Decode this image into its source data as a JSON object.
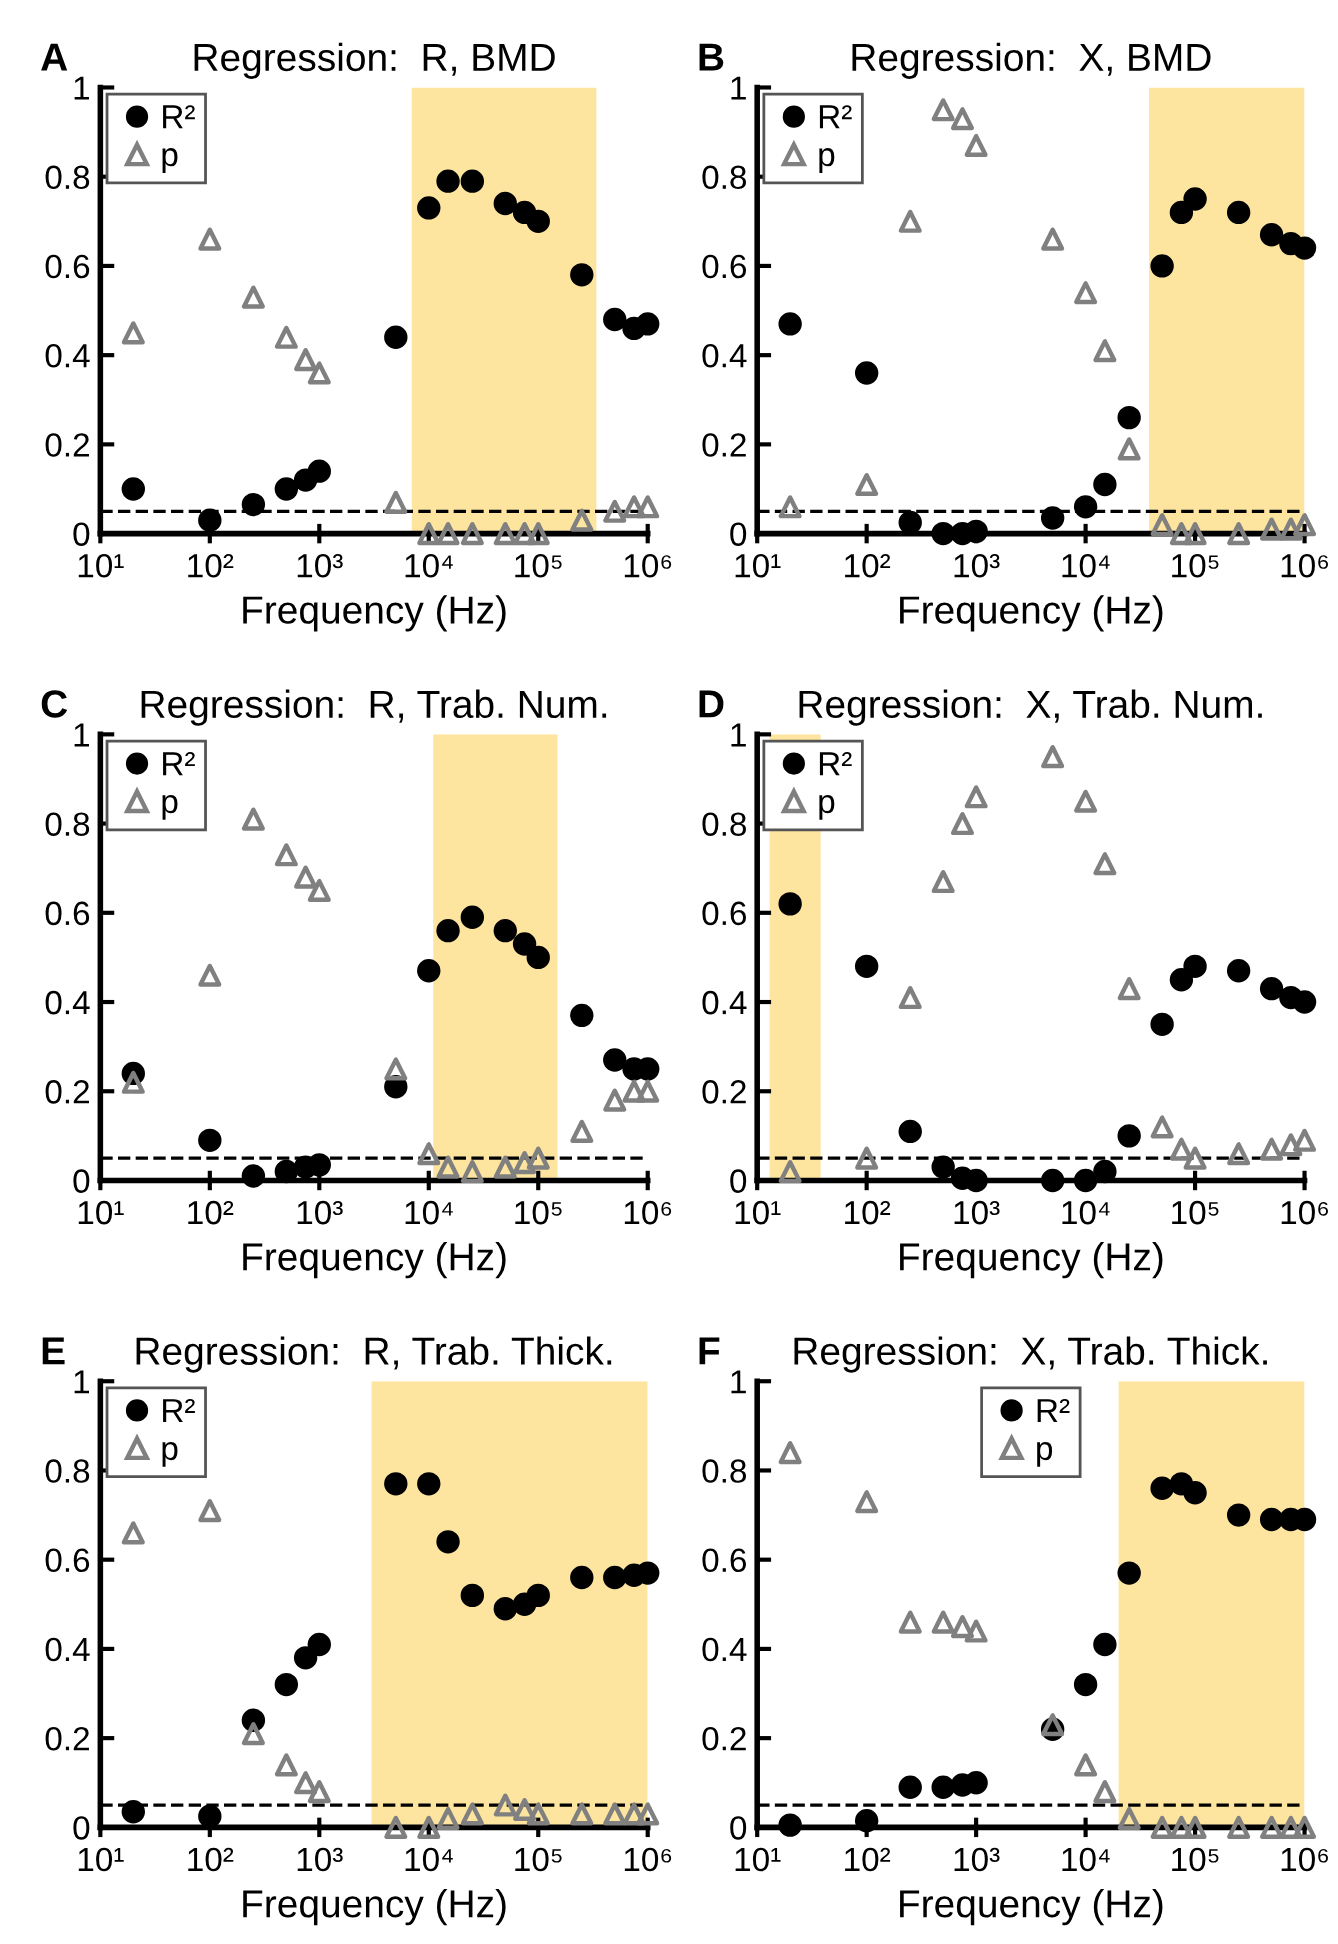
{
  "chart_data": [
    {
      "type": "scatter",
      "title": "Regression:  R, BMD",
      "annotations": [
        "A"
      ],
      "xlabel": "Frequency (Hz)",
      "log": "x",
      "legend": "top left",
      "grid": false,
      "x": [
        20,
        100,
        250,
        500,
        750,
        1000,
        5000,
        10000,
        15000,
        25000,
        50000,
        75000,
        100000,
        250000,
        500000,
        750000,
        1000000
      ],
      "series": [
        {
          "name": "R²",
          "color": "#000000",
          "marker": "circle",
          "values": [
            0.1,
            0.03,
            0.065,
            0.1,
            0.12,
            0.14,
            0.44,
            0.73,
            0.79,
            0.79,
            0.74,
            0.72,
            0.7,
            0.58,
            0.48,
            0.46,
            0.47
          ]
        },
        {
          "name": "p",
          "color": "#808080",
          "marker": "triangle",
          "values": [
            0.45,
            0.66,
            0.53,
            0.44,
            0.39,
            0.36,
            0.07,
            0.0,
            0.0,
            0.0,
            0.0,
            0.0,
            0.0,
            0.03,
            0.05,
            0.06,
            0.06
          ]
        }
      ],
      "bands": [
        {
          "axis": "x",
          "from": 7000,
          "to": 340000,
          "color": "#fde5a0"
        }
      ],
      "ref_lines": [
        {
          "axis": "y",
          "value": 0.05,
          "line_style": "dashed",
          "color": "#000000"
        }
      ],
      "xlim": [
        10,
        1000000
      ],
      "xticks": [
        {
          "value": 10,
          "label": "10¹"
        },
        {
          "value": 100,
          "label": "10²"
        },
        {
          "value": 1000,
          "label": "10³"
        },
        {
          "value": 10000,
          "label": "10⁴"
        },
        {
          "value": 100000,
          "label": "10⁵"
        },
        {
          "value": 1000000,
          "label": "10⁶"
        }
      ],
      "ylim": [
        0,
        1
      ],
      "yticks": [
        0,
        0.2,
        0.4,
        0.6,
        0.8,
        1
      ]
    },
    {
      "type": "scatter",
      "title": "Regression:  X, BMD",
      "annotations": [
        "B"
      ],
      "xlabel": "Frequency (Hz)",
      "log": "x",
      "legend": "top left",
      "grid": false,
      "x": [
        20,
        100,
        250,
        500,
        750,
        1000,
        5000,
        10000,
        15000,
        25000,
        50000,
        75000,
        100000,
        250000,
        500000,
        750000,
        1000000
      ],
      "series": [
        {
          "name": "R²",
          "color": "#000000",
          "marker": "circle",
          "values": [
            0.47,
            0.36,
            0.025,
            0.0,
            0.0,
            0.005,
            0.035,
            0.06,
            0.11,
            0.26,
            0.6,
            0.72,
            0.75,
            0.72,
            0.67,
            0.65,
            0.64
          ]
        },
        {
          "name": "p",
          "color": "#808080",
          "marker": "triangle",
          "values": [
            0.06,
            0.11,
            0.7,
            0.95,
            0.93,
            0.87,
            0.66,
            0.54,
            0.41,
            0.19,
            0.02,
            0.0,
            0.0,
            0.0,
            0.01,
            0.01,
            0.02
          ]
        }
      ],
      "bands": [
        {
          "axis": "x",
          "from": 38000,
          "to": 1000000,
          "color": "#fde5a0"
        }
      ],
      "ref_lines": [
        {
          "axis": "y",
          "value": 0.05,
          "line_style": "dashed",
          "color": "#000000"
        }
      ],
      "xlim": [
        10,
        1000000
      ],
      "xticks": [
        {
          "value": 10,
          "label": "10¹"
        },
        {
          "value": 100,
          "label": "10²"
        },
        {
          "value": 1000,
          "label": "10³"
        },
        {
          "value": 10000,
          "label": "10⁴"
        },
        {
          "value": 100000,
          "label": "10⁵"
        },
        {
          "value": 1000000,
          "label": "10⁶"
        }
      ],
      "ylim": [
        0,
        1
      ],
      "yticks": [
        0,
        0.2,
        0.4,
        0.6,
        0.8,
        1
      ]
    },
    {
      "type": "scatter",
      "title": "Regression:  R, Trab. Num.",
      "annotations": [
        "C"
      ],
      "xlabel": "Frequency (Hz)",
      "log": "x",
      "legend": "top left",
      "grid": false,
      "x": [
        20,
        100,
        250,
        500,
        750,
        1000,
        5000,
        10000,
        15000,
        25000,
        50000,
        75000,
        100000,
        250000,
        500000,
        750000,
        1000000
      ],
      "series": [
        {
          "name": "R²",
          "color": "#000000",
          "marker": "circle",
          "values": [
            0.24,
            0.09,
            0.01,
            0.02,
            0.03,
            0.035,
            0.21,
            0.47,
            0.56,
            0.59,
            0.56,
            0.53,
            0.5,
            0.37,
            0.27,
            0.25,
            0.25
          ]
        },
        {
          "name": "p",
          "color": "#808080",
          "marker": "triangle",
          "values": [
            0.22,
            0.46,
            0.81,
            0.73,
            0.68,
            0.65,
            0.25,
            0.06,
            0.03,
            0.02,
            0.03,
            0.04,
            0.05,
            0.11,
            0.18,
            0.2,
            0.2
          ]
        }
      ],
      "bands": [
        {
          "axis": "x",
          "from": 11000,
          "to": 150000,
          "color": "#fde5a0"
        }
      ],
      "ref_lines": [
        {
          "axis": "y",
          "value": 0.05,
          "line_style": "dashed",
          "color": "#000000"
        }
      ],
      "xlim": [
        10,
        1000000
      ],
      "xticks": [
        {
          "value": 10,
          "label": "10¹"
        },
        {
          "value": 100,
          "label": "10²"
        },
        {
          "value": 1000,
          "label": "10³"
        },
        {
          "value": 10000,
          "label": "10⁴"
        },
        {
          "value": 100000,
          "label": "10⁵"
        },
        {
          "value": 1000000,
          "label": "10⁶"
        }
      ],
      "ylim": [
        0,
        1
      ],
      "yticks": [
        0,
        0.2,
        0.4,
        0.6,
        0.8,
        1
      ]
    },
    {
      "type": "scatter",
      "title": "Regression:  X, Trab. Num.",
      "annotations": [
        "D"
      ],
      "xlabel": "Frequency (Hz)",
      "log": "x",
      "legend": "top left",
      "grid": false,
      "x": [
        20,
        100,
        250,
        500,
        750,
        1000,
        5000,
        10000,
        15000,
        25000,
        50000,
        75000,
        100000,
        250000,
        500000,
        750000,
        1000000
      ],
      "series": [
        {
          "name": "R²",
          "color": "#000000",
          "marker": "circle",
          "values": [
            0.62,
            0.48,
            0.11,
            0.03,
            0.005,
            0.0,
            0.0,
            0.0,
            0.02,
            0.1,
            0.35,
            0.45,
            0.48,
            0.47,
            0.43,
            0.41,
            0.4
          ]
        },
        {
          "name": "p",
          "color": "#808080",
          "marker": "triangle",
          "values": [
            0.02,
            0.05,
            0.41,
            0.67,
            0.8,
            0.86,
            0.95,
            0.85,
            0.71,
            0.43,
            0.12,
            0.07,
            0.05,
            0.06,
            0.07,
            0.08,
            0.09
          ]
        }
      ],
      "bands": [
        {
          "axis": "x",
          "from": 13,
          "to": 38,
          "color": "#fde5a0"
        }
      ],
      "ref_lines": [
        {
          "axis": "y",
          "value": 0.05,
          "line_style": "dashed",
          "color": "#000000"
        }
      ],
      "xlim": [
        10,
        1000000
      ],
      "xticks": [
        {
          "value": 10,
          "label": "10¹"
        },
        {
          "value": 100,
          "label": "10²"
        },
        {
          "value": 1000,
          "label": "10³"
        },
        {
          "value": 10000,
          "label": "10⁴"
        },
        {
          "value": 100000,
          "label": "10⁵"
        },
        {
          "value": 1000000,
          "label": "10⁶"
        }
      ],
      "ylim": [
        0,
        1
      ],
      "yticks": [
        0,
        0.2,
        0.4,
        0.6,
        0.8,
        1
      ]
    },
    {
      "type": "scatter",
      "title": "Regression:  R, Trab. Thick.",
      "annotations": [
        "E"
      ],
      "xlabel": "Frequency (Hz)",
      "log": "x",
      "legend": "top left",
      "grid": false,
      "x": [
        20,
        100,
        250,
        500,
        750,
        1000,
        5000,
        10000,
        15000,
        25000,
        50000,
        75000,
        100000,
        250000,
        500000,
        750000,
        1000000
      ],
      "series": [
        {
          "name": "R²",
          "color": "#000000",
          "marker": "circle",
          "values": [
            0.035,
            0.025,
            0.24,
            0.32,
            0.38,
            0.41,
            0.77,
            0.77,
            0.64,
            0.52,
            0.49,
            0.5,
            0.52,
            0.56,
            0.56,
            0.565,
            0.57
          ]
        },
        {
          "name": "p",
          "color": "#808080",
          "marker": "triangle",
          "values": [
            0.66,
            0.71,
            0.21,
            0.14,
            0.1,
            0.08,
            0.0,
            0.0,
            0.02,
            0.03,
            0.05,
            0.04,
            0.03,
            0.03,
            0.03,
            0.03,
            0.03
          ]
        }
      ],
      "bands": [
        {
          "axis": "x",
          "from": 3000,
          "to": 1000000,
          "color": "#fde5a0"
        }
      ],
      "ref_lines": [
        {
          "axis": "y",
          "value": 0.05,
          "line_style": "dashed",
          "color": "#000000"
        }
      ],
      "xlim": [
        10,
        1000000
      ],
      "xticks": [
        {
          "value": 10,
          "label": "10¹"
        },
        {
          "value": 100,
          "label": "10²"
        },
        {
          "value": 1000,
          "label": "10³"
        },
        {
          "value": 10000,
          "label": "10⁴"
        },
        {
          "value": 100000,
          "label": "10⁵"
        },
        {
          "value": 1000000,
          "label": "10⁶"
        }
      ],
      "ylim": [
        0,
        1
      ],
      "yticks": [
        0,
        0.2,
        0.4,
        0.6,
        0.8,
        1
      ]
    },
    {
      "type": "scatter",
      "title": "Regression:  X, Trab. Thick.",
      "annotations": [
        "F"
      ],
      "xlabel": "Frequency (Hz)",
      "log": "x",
      "legend": "top",
      "grid": false,
      "x": [
        20,
        100,
        250,
        500,
        750,
        1000,
        5000,
        10000,
        15000,
        25000,
        50000,
        75000,
        100000,
        250000,
        500000,
        750000,
        1000000
      ],
      "series": [
        {
          "name": "R²",
          "color": "#000000",
          "marker": "circle",
          "values": [
            0.005,
            0.015,
            0.09,
            0.09,
            0.095,
            0.1,
            0.22,
            0.32,
            0.41,
            0.57,
            0.76,
            0.77,
            0.75,
            0.7,
            0.69,
            0.69,
            0.69
          ]
        },
        {
          "name": "p",
          "color": "#808080",
          "marker": "triangle",
          "values": [
            0.84,
            0.73,
            0.46,
            0.46,
            0.45,
            0.44,
            0.23,
            0.14,
            0.08,
            0.02,
            0.0,
            0.0,
            0.0,
            0.0,
            0.0,
            0.0,
            0.0
          ]
        }
      ],
      "bands": [
        {
          "axis": "x",
          "from": 20000,
          "to": 1000000,
          "color": "#fde5a0"
        }
      ],
      "ref_lines": [
        {
          "axis": "y",
          "value": 0.05,
          "line_style": "dashed",
          "color": "#000000"
        }
      ],
      "xlim": [
        10,
        1000000
      ],
      "xticks": [
        {
          "value": 10,
          "label": "10¹"
        },
        {
          "value": 100,
          "label": "10²"
        },
        {
          "value": 1000,
          "label": "10³"
        },
        {
          "value": 10000,
          "label": "10⁴"
        },
        {
          "value": 100000,
          "label": "10⁵"
        },
        {
          "value": 1000000,
          "label": "10⁶"
        }
      ],
      "ylim": [
        0,
        1
      ],
      "yticks": [
        0,
        0.2,
        0.4,
        0.6,
        0.8,
        1
      ]
    }
  ]
}
